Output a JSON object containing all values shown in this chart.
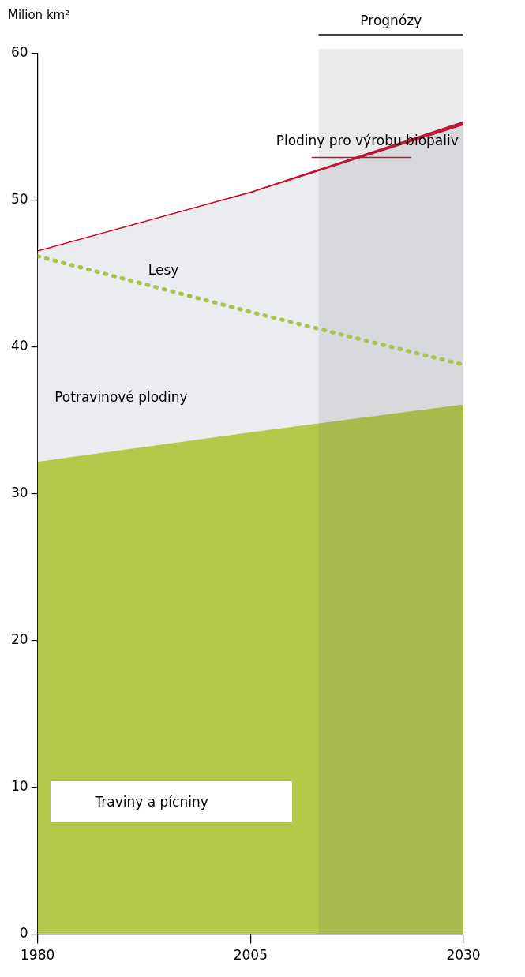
{
  "chart_data": {
    "type": "area",
    "stacked": true,
    "ylabel": "Milion km²",
    "xlim": [
      1980,
      2030
    ],
    "xticks": [
      1980,
      2005,
      2030
    ],
    "ylim": [
      0,
      60
    ],
    "yticks": [
      0,
      10,
      20,
      30,
      40,
      50,
      60
    ],
    "x": [
      1980,
      2005,
      2030
    ],
    "grid": false,
    "legend": false,
    "series": [
      {
        "name": "Traviny a pícniny",
        "type": "area",
        "color": "#b3c94a",
        "values": [
          32.2,
          34.2,
          36.1
        ]
      },
      {
        "name": "Potravinové plodiny",
        "type": "area",
        "color": "#ebecef",
        "values": [
          14.3,
          16.3,
          19.0
        ]
      },
      {
        "name": "Plodiny pro výrobu biopaliv",
        "type": "area",
        "color": "#c8102e",
        "values": [
          0.1,
          0.1,
          0.3
        ]
      },
      {
        "name": "Lesy",
        "type": "line",
        "color": "#a8c24a",
        "line_style": "dotted",
        "values": [
          46.2,
          42.4,
          38.8
        ]
      }
    ],
    "bands": [
      {
        "axis": "x",
        "from": 2013,
        "to": 2030,
        "label": "Prognózy",
        "color": "#5a5a64"
      }
    ]
  }
}
